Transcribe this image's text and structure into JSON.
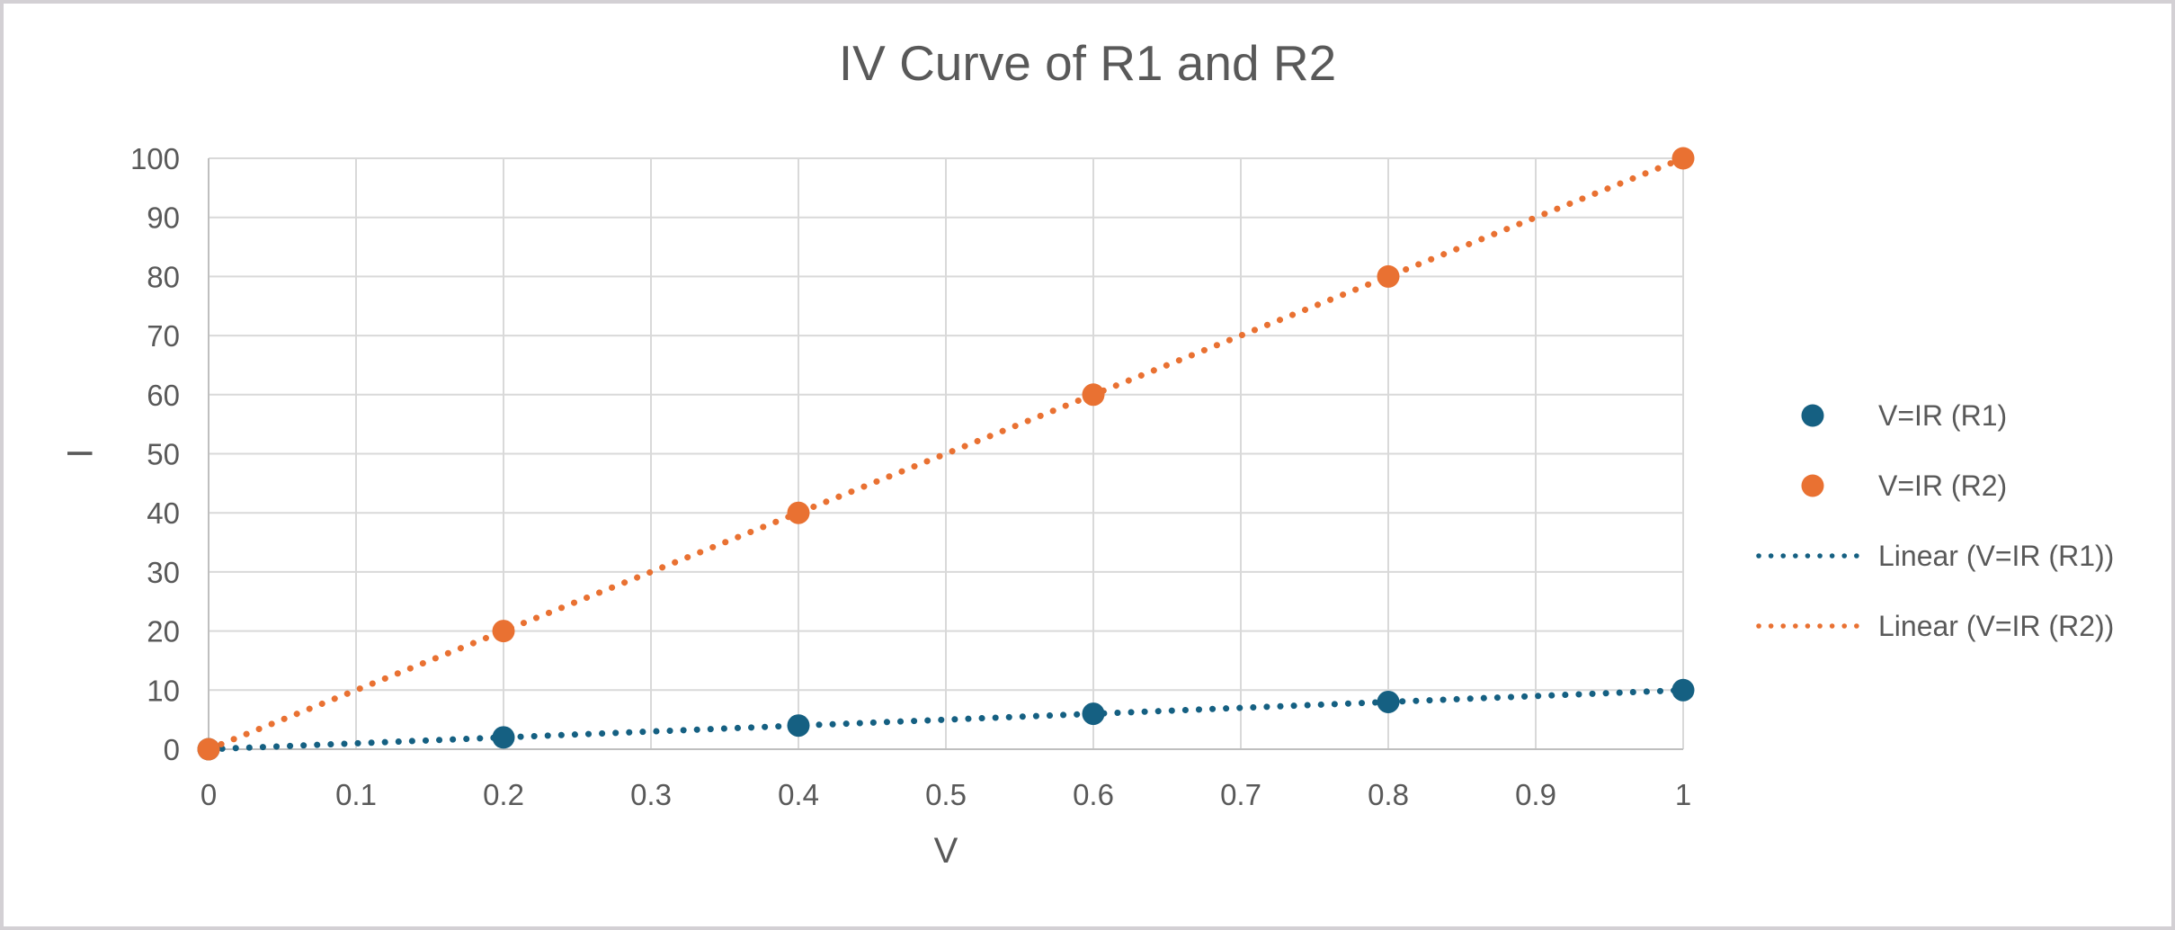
{
  "chart_data": {
    "type": "scatter",
    "title": "IV Curve of R1 and R2",
    "xlabel": "V",
    "ylabel": "I",
    "xlim": [
      0,
      1
    ],
    "ylim": [
      0,
      100
    ],
    "x_tick_labels": [
      "0",
      "0.1",
      "0.2",
      "0.3",
      "0.4",
      "0.5",
      "0.6",
      "0.7",
      "0.8",
      "0.9",
      "1"
    ],
    "y_tick_labels": [
      "0",
      "10",
      "20",
      "30",
      "40",
      "50",
      "60",
      "70",
      "80",
      "90",
      "100"
    ],
    "grid": true,
    "legend_position": "right",
    "series": [
      {
        "name": "V=IR (R1)",
        "color": "#156082",
        "x": [
          0,
          0.2,
          0.4,
          0.6,
          0.8,
          1
        ],
        "y": [
          0,
          2,
          4,
          6,
          8,
          10
        ]
      },
      {
        "name": "V=IR (R2)",
        "color": "#E97132",
        "x": [
          0,
          0.2,
          0.4,
          0.6,
          0.8,
          1
        ],
        "y": [
          0,
          20,
          40,
          60,
          80,
          100
        ]
      }
    ],
    "trendlines": [
      {
        "name": "Linear (V=IR (R1))",
        "color": "#156082",
        "style": "dotted",
        "from": [
          0,
          0
        ],
        "to": [
          1,
          10
        ]
      },
      {
        "name": "Linear (V=IR (R2))",
        "color": "#E97132",
        "style": "dotted",
        "from": [
          0,
          0
        ],
        "to": [
          1,
          100
        ]
      }
    ],
    "legend": [
      {
        "label": "V=IR (R1)",
        "symbol": "circle",
        "color": "#156082"
      },
      {
        "label": "V=IR (R2)",
        "symbol": "circle",
        "color": "#E97132"
      },
      {
        "label": "Linear (V=IR (R1))",
        "symbol": "dotted-line",
        "color": "#156082"
      },
      {
        "label": "Linear (V=IR (R2))",
        "symbol": "dotted-line",
        "color": "#E97132"
      }
    ]
  },
  "colors": {
    "text": "#595959",
    "grid": "#D9D9D9",
    "axis": "#BFBFBF",
    "background": "#FFFFFF",
    "border": "#D3D0D4"
  }
}
